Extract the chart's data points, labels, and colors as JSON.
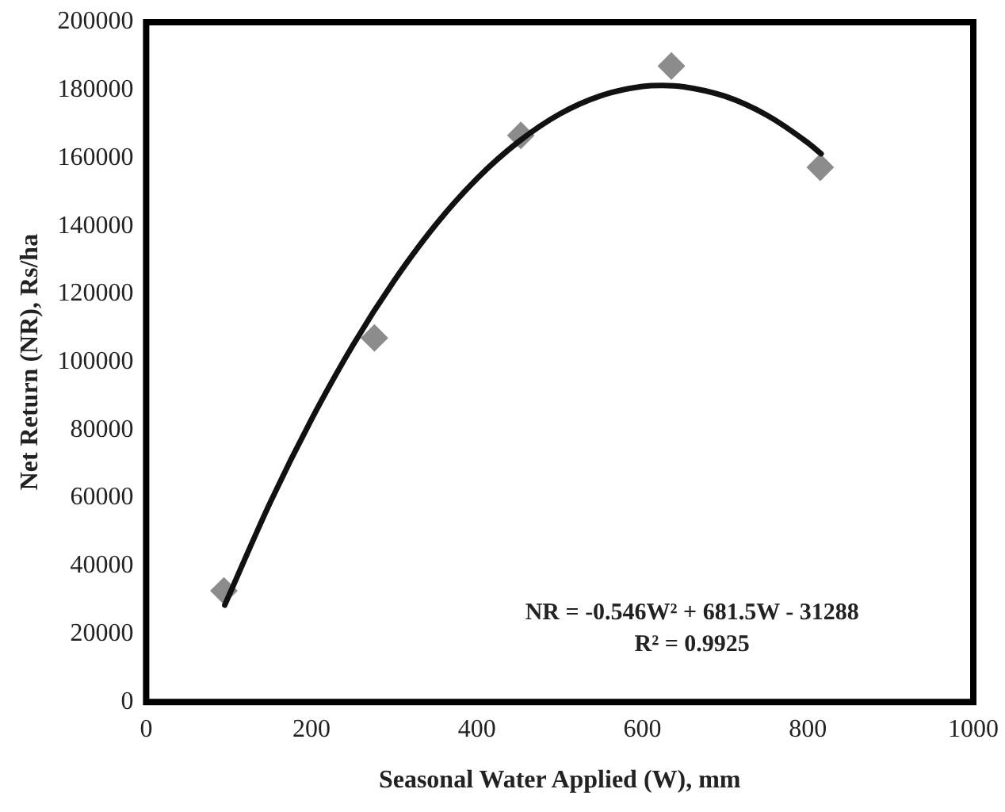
{
  "chart_data": {
    "type": "scatter",
    "xlabel": "Seasonal Water Applied (W), mm",
    "ylabel": "Net Return (NR), Rs/ha",
    "xlim": [
      0,
      1000
    ],
    "xticks": [
      0,
      200,
      400,
      600,
      800,
      1000
    ],
    "ylim": [
      0,
      200000
    ],
    "yticks": [
      0,
      20000,
      40000,
      60000,
      80000,
      100000,
      120000,
      140000,
      160000,
      180000,
      200000
    ],
    "grid": false,
    "legend": false,
    "marker": "diamond",
    "series": [
      {
        "color": "#8c8c8c",
        "x": [
          94,
          276,
          453,
          635,
          815
        ],
        "values": [
          32700,
          107100,
          166700,
          187100,
          157300
        ]
      },
      {
        "type": "line",
        "color": "#111111",
        "marker": "none",
        "line_style": "solid",
        "x": [
          95,
          150,
          200,
          250,
          300,
          350,
          400,
          450,
          500,
          550,
          600,
          624,
          650,
          700,
          750,
          800,
          816
        ],
        "values": [
          28500,
          58700,
          83200,
          105000,
          124000,
          140400,
          154000,
          164800,
          173000,
          178400,
          181100,
          181400,
          181000,
          178200,
          172700,
          164500,
          161300
        ]
      }
    ],
    "annotations": [
      "NR = -0.546W² + 681.5W - 31288",
      "R² = 0.9925"
    ]
  }
}
